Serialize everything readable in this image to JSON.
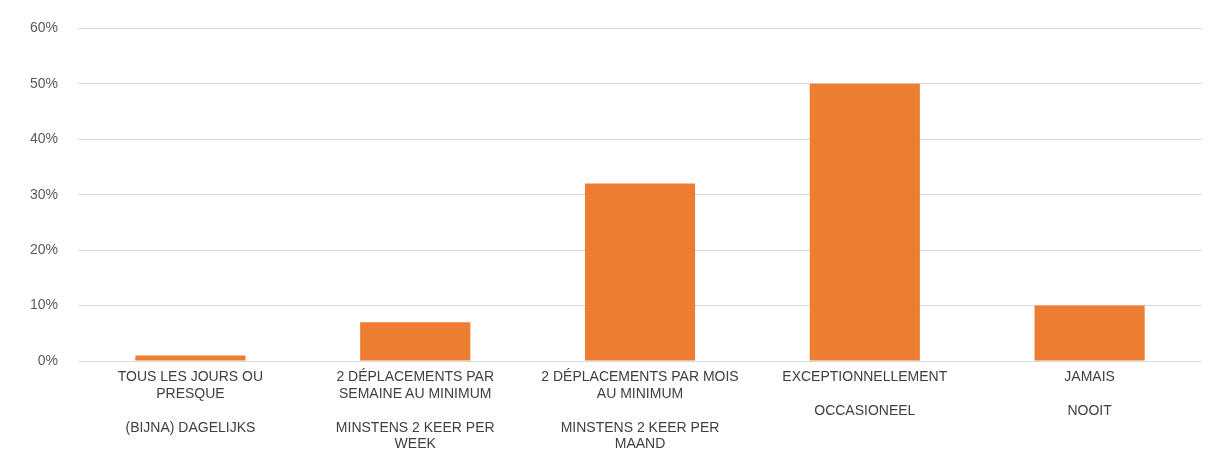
{
  "chart_data": {
    "type": "bar",
    "categories": [
      "TOUS LES JOURS OU PRESQUE\n(BIJNA) DAGELIJKS",
      "2 DÉPLACEMENTS PAR SEMAINE AU MINIMUM\nMINSTENS 2 KEER PER WEEK",
      "2 DÉPLACEMENTS PAR MOIS AU MINIMUM\nMINSTENS 2 KEER PER MAAND",
      "EXCEPTIONNELLEMENT\nOCCASIONEEL",
      "JAMAIS\nNOOIT"
    ],
    "values": [
      1,
      7,
      32,
      50,
      10
    ],
    "color": "#ed7d31",
    "ylim": [
      0,
      60
    ],
    "yticks": [
      {
        "value": 0,
        "label": "0%"
      },
      {
        "value": 10,
        "label": "10%"
      },
      {
        "value": 20,
        "label": "20%"
      },
      {
        "value": 30,
        "label": "30%"
      },
      {
        "value": 40,
        "label": "40%"
      },
      {
        "value": 50,
        "label": "50%"
      },
      {
        "value": 60,
        "label": "60%"
      }
    ],
    "grid": "y"
  }
}
